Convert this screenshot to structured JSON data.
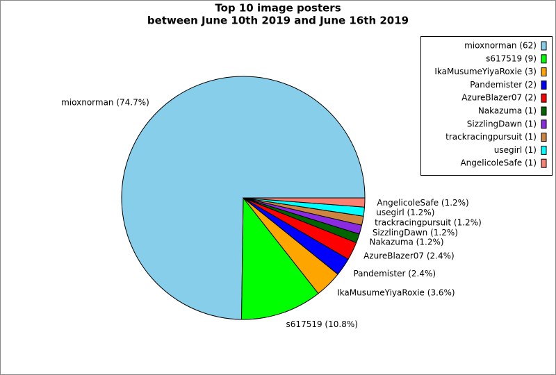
{
  "chart_data": {
    "type": "pie",
    "title": [
      "Top 10 image posters",
      "between June 10th 2019 and June 16th 2019"
    ],
    "categories": [
      "mioxnorman (62)",
      "s617519 (9)",
      "IkaMusumeYiyaRoxie (3)",
      "Pandemister (2)",
      "AzureBlazer07 (2)",
      "Nakazuma (1)",
      "SizzlingDawn (1)",
      "trackracingpursuit (1)",
      "usegirl (1)",
      "AngelicoleSafe (1)"
    ],
    "values": [
      74.7,
      10.8,
      3.6,
      2.4,
      2.4,
      1.2,
      1.2,
      1.2,
      1.2,
      1.2
    ],
    "value_labels": [
      "mioxnorman (74.7%)",
      "s617519 (10.8%)",
      "IkaMusumeYiyaRoxie (3.6%)",
      "Pandemister (2.4%)",
      "AzureBlazer07 (2.4%)",
      "Nakazuma (1.2%)",
      "SizzlingDawn (1.2%)",
      "trackracingpursuit (1.2%)",
      "usegirl (1.2%)",
      "AngelicoleSafe (1.2%)"
    ],
    "colors": [
      "#87ceeb",
      "#00ff00",
      "#ffa500",
      "#0000ff",
      "#ff0000",
      "#006400",
      "#8a2be2",
      "#cd853f",
      "#00ffff",
      "#fa8072"
    ],
    "legend": "upper right"
  }
}
